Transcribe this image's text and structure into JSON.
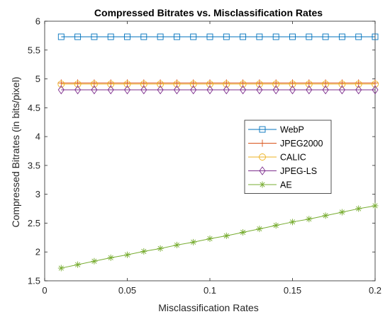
{
  "chart_data": {
    "type": "line",
    "title": "Compressed Bitrates vs. Misclassification Rates",
    "xlabel": "Misclassification Rates",
    "ylabel": "Compressed Bitrates (in bits/pixel)",
    "xlim": [
      0,
      0.2
    ],
    "ylim": [
      1.5,
      6
    ],
    "xticks": [
      0,
      0.05,
      0.1,
      0.15,
      0.2
    ],
    "xtick_labels": [
      "0",
      "0.05",
      "0.1",
      "0.15",
      "0.2"
    ],
    "yticks": [
      1.5,
      2,
      2.5,
      3,
      3.5,
      4,
      4.5,
      5,
      5.5,
      6
    ],
    "ytick_labels": [
      "1.5",
      "2",
      "2.5",
      "3",
      "3.5",
      "4",
      "4.5",
      "5",
      "5.5",
      "6"
    ],
    "grid": false,
    "legend_position": "center-right",
    "x": [
      0.01,
      0.02,
      0.03,
      0.04,
      0.05,
      0.06,
      0.07,
      0.08,
      0.09,
      0.1,
      0.11,
      0.12,
      0.13,
      0.14,
      0.15,
      0.16,
      0.17,
      0.18,
      0.19,
      0.2
    ],
    "series": [
      {
        "name": "WebP",
        "color": "#0072BD",
        "marker": "square",
        "values": [
          5.73,
          5.73,
          5.73,
          5.73,
          5.73,
          5.73,
          5.73,
          5.73,
          5.73,
          5.73,
          5.73,
          5.73,
          5.73,
          5.73,
          5.73,
          5.73,
          5.73,
          5.73,
          5.73,
          5.73
        ]
      },
      {
        "name": "JPEG2000",
        "color": "#D95319",
        "marker": "plus",
        "values": [
          4.93,
          4.93,
          4.93,
          4.93,
          4.93,
          4.93,
          4.93,
          4.93,
          4.93,
          4.93,
          4.93,
          4.93,
          4.93,
          4.93,
          4.93,
          4.93,
          4.93,
          4.93,
          4.93,
          4.93
        ]
      },
      {
        "name": "CALIC",
        "color": "#EDB120",
        "marker": "circle",
        "values": [
          4.91,
          4.91,
          4.91,
          4.91,
          4.91,
          4.91,
          4.91,
          4.91,
          4.91,
          4.91,
          4.91,
          4.91,
          4.91,
          4.91,
          4.91,
          4.91,
          4.91,
          4.91,
          4.91,
          4.91
        ]
      },
      {
        "name": "JPEG-LS",
        "color": "#7E2F8E",
        "marker": "diamond",
        "values": [
          4.81,
          4.81,
          4.81,
          4.81,
          4.81,
          4.81,
          4.81,
          4.81,
          4.81,
          4.81,
          4.81,
          4.81,
          4.81,
          4.81,
          4.81,
          4.81,
          4.81,
          4.81,
          4.81,
          4.81
        ]
      },
      {
        "name": "AE",
        "color": "#77AC30",
        "marker": "asterisk",
        "values": [
          1.72,
          1.78,
          1.84,
          1.9,
          1.95,
          2.01,
          2.06,
          2.12,
          2.17,
          2.23,
          2.28,
          2.34,
          2.4,
          2.46,
          2.52,
          2.57,
          2.63,
          2.69,
          2.75,
          2.8
        ]
      }
    ]
  }
}
